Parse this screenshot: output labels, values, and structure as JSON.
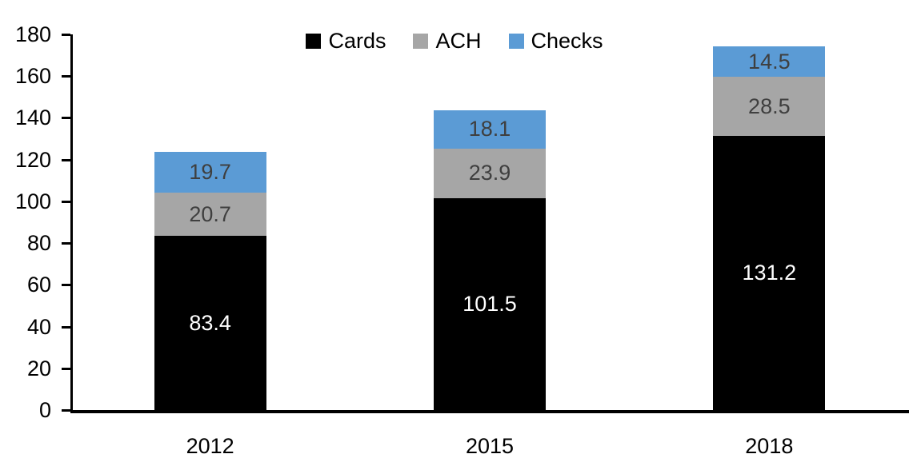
{
  "chart_data": {
    "type": "bar",
    "stacked": true,
    "title": "",
    "xlabel": "",
    "ylabel": "",
    "grid": false,
    "categories": [
      "2012",
      "2015",
      "2018"
    ],
    "series": [
      {
        "name": "Cards",
        "color": "#000000",
        "label_color": "#ffffff",
        "values": [
          83.4,
          101.5,
          131.2
        ]
      },
      {
        "name": "ACH",
        "color": "#a6a6a6",
        "label_color": "#3f3f3f",
        "values": [
          20.7,
          23.9,
          28.5
        ]
      },
      {
        "name": "Checks",
        "color": "#5b9bd5",
        "label_color": "#3f3f3f",
        "values": [
          19.7,
          18.1,
          14.5
        ]
      }
    ],
    "y_axis": {
      "min": 0,
      "max": 180,
      "tick_interval": 20,
      "tick_labels": [
        "0",
        "20",
        "40",
        "60",
        "80",
        "100",
        "120",
        "140",
        "160",
        "180"
      ]
    },
    "legend": {
      "position": "top",
      "entries": [
        "Cards",
        "ACH",
        "Checks"
      ]
    }
  }
}
